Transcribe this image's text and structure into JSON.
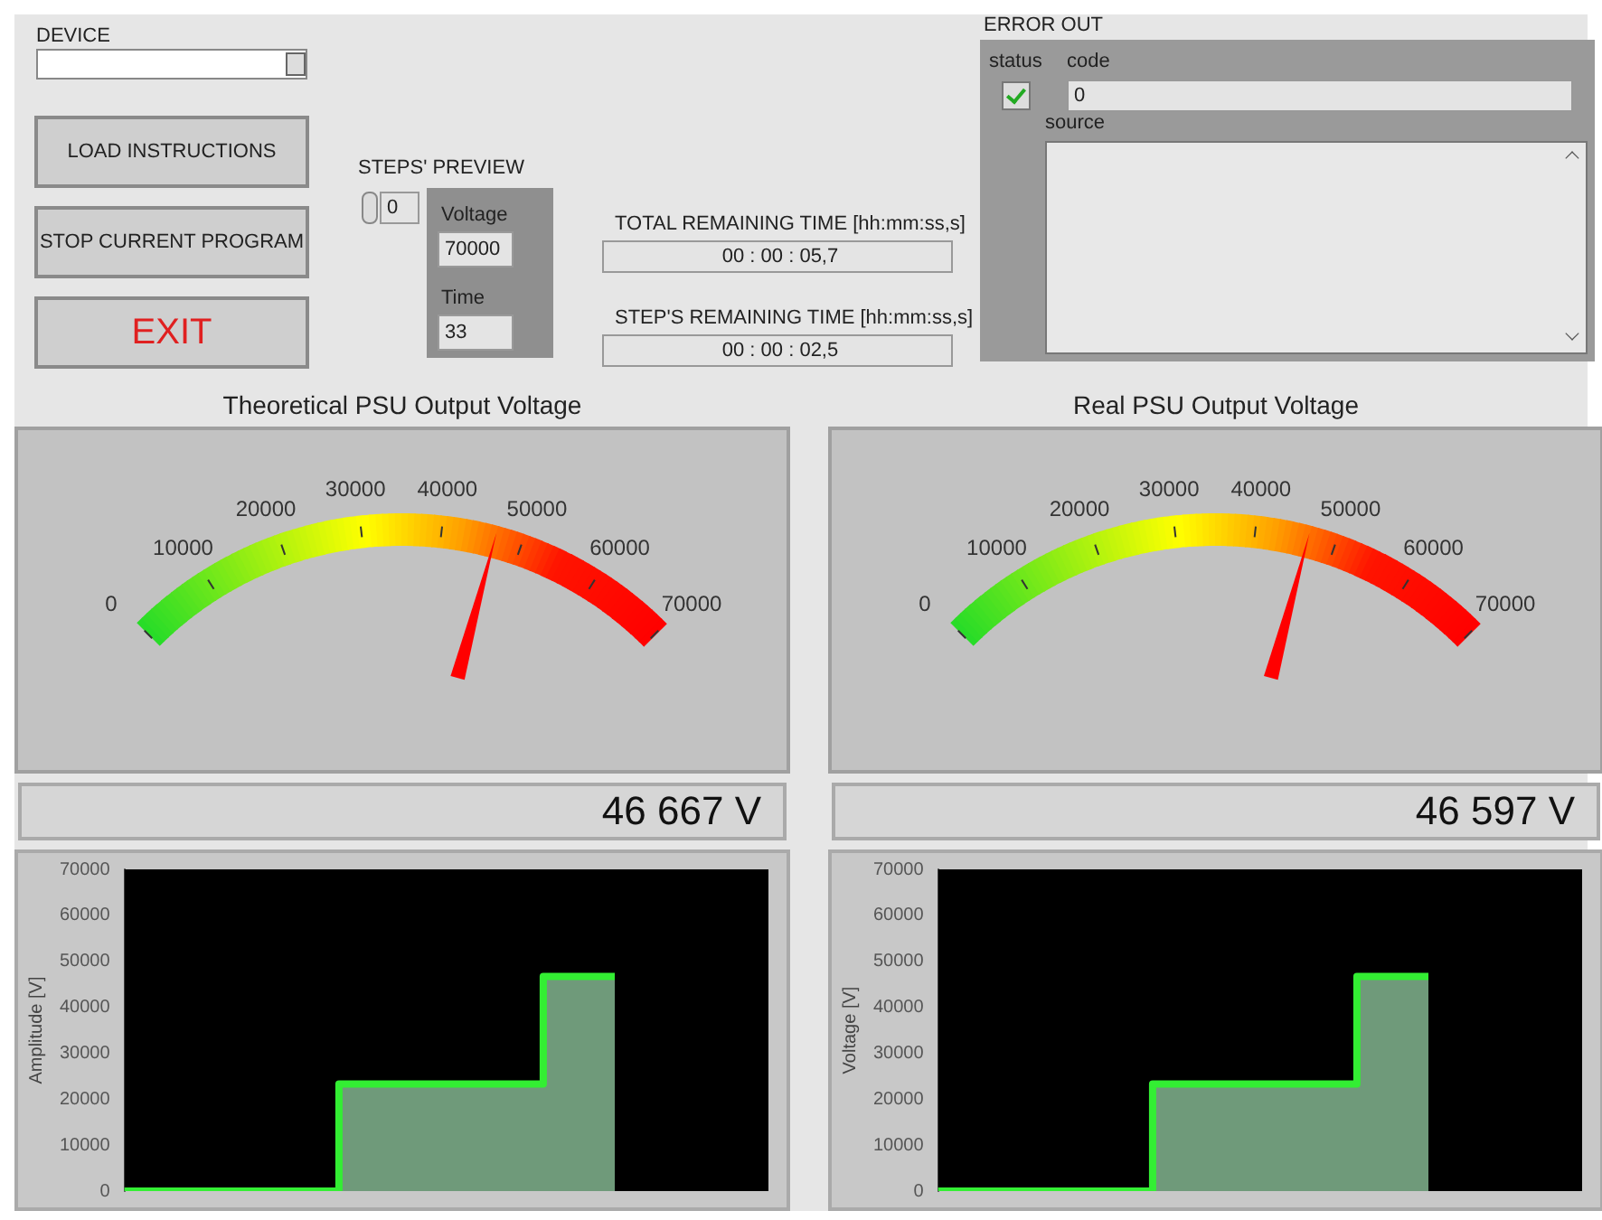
{
  "chart_data": [
    {
      "type": "other",
      "annotations": [
        "DEVICE",
        "LOAD INSTRUCTIONS",
        "STOP CURRENT PROGRAM",
        "EXIT",
        "STEPS' PREVIEW",
        "0",
        "Voltage",
        "70000",
        "Time",
        "33",
        "TOTAL REMAINING TIME [hh:mm:ss,s]",
        "00 : 00 : 05,7",
        "STEP'S REMAINING TIME [hh:mm:ss,s]",
        "00 : 00 : 02,5",
        "ERROR OUT",
        "status",
        "code",
        "0",
        "source"
      ]
    },
    {
      "type": "other",
      "title": "Theoretical PSU Output Voltage",
      "values": [
        46667
      ],
      "value_labels": [
        "46 667 V"
      ],
      "annotations": [
        "0",
        "10000",
        "20000",
        "30000",
        "40000",
        "50000",
        "60000",
        "70000"
      ]
    },
    {
      "type": "other",
      "title": "Real PSU Output Voltage",
      "values": [
        46597
      ],
      "value_labels": [
        "46 597 V"
      ],
      "annotations": [
        "0",
        "10000",
        "20000",
        "30000",
        "40000",
        "50000",
        "60000",
        "70000"
      ]
    },
    {
      "type": "step",
      "ylabel": "Amplitude [V]",
      "categories": [
        null,
        null,
        null,
        null,
        null,
        null,
        null,
        null,
        null,
        null,
        null,
        null,
        null,
        null,
        null,
        null,
        null,
        null,
        null,
        null,
        null,
        null,
        null,
        null,
        null
      ],
      "values": [
        0,
        0,
        0,
        0,
        0,
        0,
        0,
        0,
        0,
        0,
        0,
        23300,
        23300,
        23300,
        23300,
        23300,
        23300,
        23300,
        23300,
        23300,
        23300,
        46700,
        46700,
        46700,
        46700
      ],
      "color": "#33ee33",
      "ylim": [
        0,
        70000
      ],
      "yticks": [
        0,
        10000,
        20000,
        30000,
        40000,
        50000,
        60000,
        70000
      ],
      "tick_labels": "y"
    },
    {
      "type": "step",
      "ylabel": "Voltage [V]",
      "categories": [
        null,
        null,
        null,
        null,
        null,
        null,
        null,
        null,
        null,
        null,
        null,
        null,
        null,
        null,
        null,
        null,
        null,
        null,
        null,
        null,
        null,
        null,
        null,
        null,
        null
      ],
      "values": [
        0,
        0,
        0,
        0,
        0,
        0,
        0,
        0,
        0,
        0,
        0,
        23300,
        23300,
        23300,
        23300,
        23300,
        23300,
        23300,
        23300,
        23300,
        23300,
        46700,
        46700,
        46700,
        46700
      ],
      "color": "#33ee33",
      "ylim": [
        0,
        70000
      ],
      "yticks": [
        0,
        10000,
        20000,
        30000,
        40000,
        50000,
        60000,
        70000
      ],
      "tick_labels": "y"
    }
  ]
}
